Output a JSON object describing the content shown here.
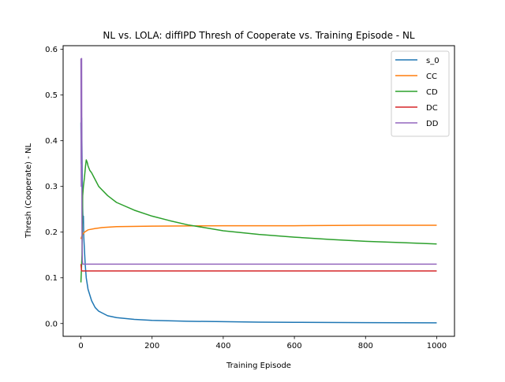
{
  "chart_data": {
    "type": "line",
    "title": "NL vs. LOLA: diffIPD Thresh of Cooperate vs. Training Episode - NL",
    "xlabel": "Training Episode",
    "ylabel": "Thresh (Cooperate) - NL",
    "xlim": [
      -50,
      1050
    ],
    "ylim": [
      -0.028,
      0.608
    ],
    "xticks": [
      0,
      200,
      400,
      600,
      800,
      1000
    ],
    "xtick_labels": [
      "0",
      "200",
      "400",
      "600",
      "800",
      "1000"
    ],
    "yticks": [
      0.0,
      0.1,
      0.2,
      0.3,
      0.4,
      0.5,
      0.6
    ],
    "ytick_labels": [
      "0.0",
      "0.1",
      "0.2",
      "0.3",
      "0.4",
      "0.5",
      "0.6"
    ],
    "grid": false,
    "legend_position": "top-right",
    "series": [
      {
        "name": "s_0",
        "color": "#1f77b4",
        "points": [
          [
            0,
            0.44
          ],
          [
            1,
            0.35
          ],
          [
            2,
            0.45
          ],
          [
            3,
            0.38
          ],
          [
            4,
            0.3
          ],
          [
            5,
            0.25
          ],
          [
            6,
            0.22
          ],
          [
            7,
            0.235
          ],
          [
            8,
            0.19
          ],
          [
            10,
            0.16
          ],
          [
            12,
            0.13
          ],
          [
            15,
            0.1
          ],
          [
            20,
            0.075
          ],
          [
            30,
            0.05
          ],
          [
            40,
            0.035
          ],
          [
            50,
            0.027
          ],
          [
            75,
            0.017
          ],
          [
            100,
            0.013
          ],
          [
            150,
            0.009
          ],
          [
            200,
            0.007
          ],
          [
            300,
            0.005
          ],
          [
            400,
            0.004
          ],
          [
            500,
            0.003
          ],
          [
            600,
            0.0027
          ],
          [
            800,
            0.002
          ],
          [
            1000,
            0.0015
          ]
        ]
      },
      {
        "name": "CC",
        "color": "#ff7f0e",
        "points": [
          [
            0,
            0.185
          ],
          [
            2,
            0.19
          ],
          [
            5,
            0.195
          ],
          [
            10,
            0.2
          ],
          [
            20,
            0.205
          ],
          [
            40,
            0.208
          ],
          [
            60,
            0.21
          ],
          [
            100,
            0.212
          ],
          [
            200,
            0.213
          ],
          [
            400,
            0.214
          ],
          [
            600,
            0.214
          ],
          [
            800,
            0.215
          ],
          [
            1000,
            0.215
          ]
        ]
      },
      {
        "name": "CD",
        "color": "#2ca02c",
        "points": [
          [
            0,
            0.09
          ],
          [
            3,
            0.15
          ],
          [
            5,
            0.28
          ],
          [
            7,
            0.3
          ],
          [
            10,
            0.32
          ],
          [
            13,
            0.345
          ],
          [
            15,
            0.358
          ],
          [
            18,
            0.352
          ],
          [
            20,
            0.345
          ],
          [
            25,
            0.335
          ],
          [
            30,
            0.33
          ],
          [
            40,
            0.315
          ],
          [
            50,
            0.3
          ],
          [
            75,
            0.28
          ],
          [
            100,
            0.265
          ],
          [
            150,
            0.248
          ],
          [
            200,
            0.235
          ],
          [
            250,
            0.225
          ],
          [
            300,
            0.216
          ],
          [
            400,
            0.203
          ],
          [
            500,
            0.195
          ],
          [
            600,
            0.189
          ],
          [
            700,
            0.184
          ],
          [
            800,
            0.18
          ],
          [
            900,
            0.177
          ],
          [
            1000,
            0.174
          ]
        ]
      },
      {
        "name": "DC",
        "color": "#d62728",
        "points": [
          [
            0,
            0.13
          ],
          [
            2,
            0.115
          ],
          [
            5,
            0.115
          ],
          [
            1000,
            0.115
          ]
        ]
      },
      {
        "name": "DD",
        "color": "#9467bd",
        "points": [
          [
            0,
            0.58
          ],
          [
            1,
            0.3
          ],
          [
            2,
            0.58
          ],
          [
            3,
            0.2
          ],
          [
            4,
            0.14
          ],
          [
            5,
            0.13
          ],
          [
            8,
            0.13
          ],
          [
            1000,
            0.13
          ]
        ]
      }
    ]
  }
}
